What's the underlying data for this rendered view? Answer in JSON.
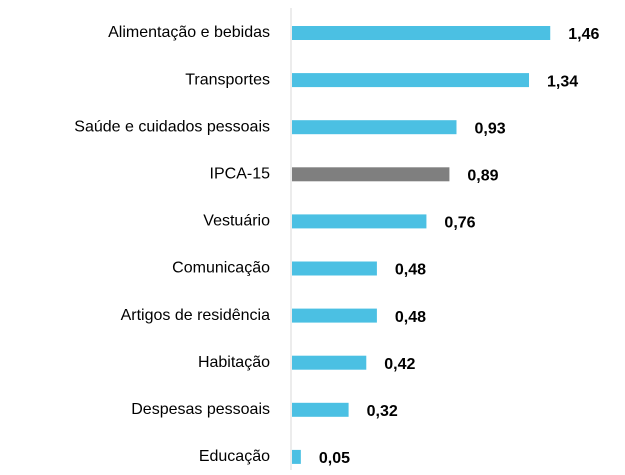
{
  "chart_data": {
    "type": "barh",
    "categories": [
      "Alimentação e bebidas",
      "Transportes",
      "Saúde e cuidados pessoais",
      "IPCA-15",
      "Vestuário",
      "Comunicação",
      "Artigos de residência",
      "Habitação",
      "Despesas pessoais",
      "Educação"
    ],
    "values": [
      1.46,
      1.34,
      0.93,
      0.89,
      0.76,
      0.48,
      0.48,
      0.42,
      0.32,
      0.05
    ],
    "value_labels": [
      "1,46",
      "1,34",
      "0,93",
      "0,89",
      "0,76",
      "0,48",
      "0,48",
      "0,42",
      "0,32",
      "0,05"
    ],
    "colors": [
      "#4bc0e3",
      "#4bc0e3",
      "#4bc0e3",
      "#7f7f7f",
      "#4bc0e3",
      "#4bc0e3",
      "#4bc0e3",
      "#4bc0e3",
      "#4bc0e3",
      "#4bc0e3"
    ],
    "xlim": [
      0,
      1.6
    ]
  }
}
